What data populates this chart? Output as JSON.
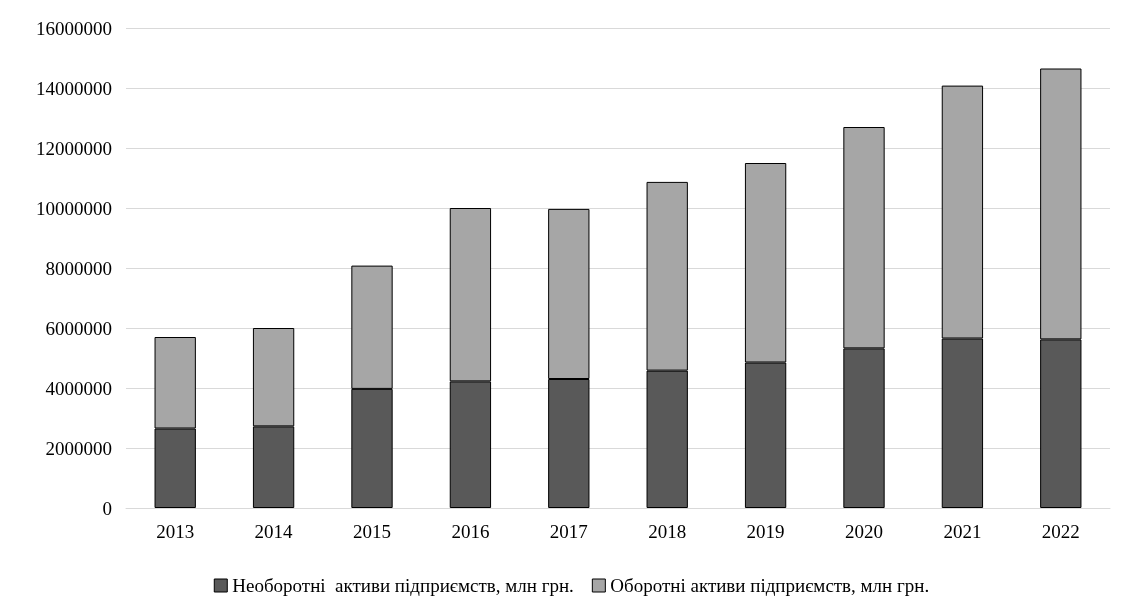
{
  "chart_data": {
    "type": "bar",
    "stacked": true,
    "categories": [
      "2013",
      "2014",
      "2015",
      "2016",
      "2017",
      "2018",
      "2019",
      "2020",
      "2021",
      "2022"
    ],
    "series": [
      {
        "name": "Необоротні  активи підприємств, млн грн.",
        "color": "#595959",
        "values": [
          2650000,
          2720000,
          3970000,
          4220000,
          4300000,
          4580000,
          4850000,
          5320000,
          5650000,
          5620000
        ]
      },
      {
        "name": "Оборотні активи підприємств, млн грн.",
        "color": "#a6a6a6",
        "values": [
          3050000,
          3280000,
          4110000,
          5780000,
          5670000,
          6290000,
          6650000,
          7380000,
          8430000,
          9030000
        ]
      }
    ],
    "ylim": [
      0,
      16000000
    ],
    "yticks": [
      0,
      2000000,
      4000000,
      6000000,
      8000000,
      10000000,
      12000000,
      14000000,
      16000000
    ],
    "grid": "y",
    "legend": "bottom"
  }
}
